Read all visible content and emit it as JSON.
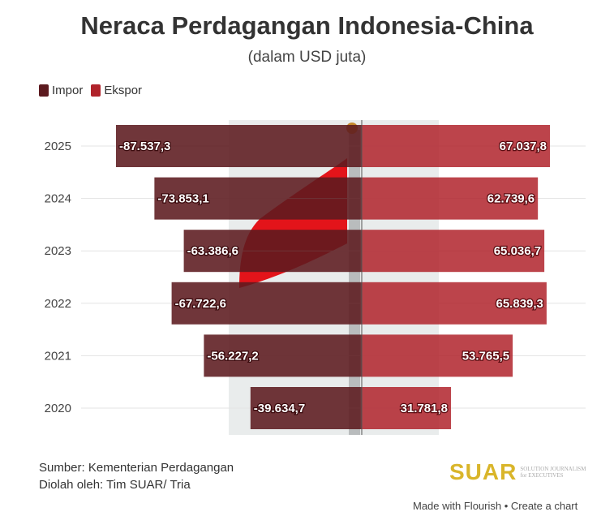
{
  "title": "Neraca Perdagangan Indonesia-China",
  "subtitle": "(dalam USD juta)",
  "legend": [
    {
      "label": "Impor",
      "color": "#5c1a1f"
    },
    {
      "label": "Ekspor",
      "color": "#b0232b"
    }
  ],
  "chart_data": {
    "type": "bar",
    "orientation": "horizontal-diverging",
    "categories": [
      "2025",
      "2024",
      "2023",
      "2022",
      "2021",
      "2020"
    ],
    "series": [
      {
        "name": "Impor",
        "values": [
          -87537.3,
          -73853.1,
          -63386.6,
          -67722.6,
          -56227.2,
          -39634.7
        ],
        "labels": [
          "-87.537,3",
          "-73.853,1",
          "-63.386,6",
          "-67.722,6",
          "-56.227,2",
          "-39.634,7"
        ]
      },
      {
        "name": "Ekspor",
        "values": [
          67037.8,
          62739.6,
          65036.7,
          65839.3,
          53765.5,
          31781.8
        ],
        "labels": [
          "67.037,8",
          "62.739,6",
          "65.036,7",
          "65.839,3",
          "53.765,5",
          "31.781,8"
        ]
      }
    ],
    "xlim": [
      -87537.3,
      79000
    ]
  },
  "source": "Sumber: Kementerian Perdagangan",
  "processed": "Diolah oleh: Tim SUAR/ Tria",
  "logo": {
    "name": "SUAR",
    "tag1": "SOLUTION JOURNALISM",
    "tag2": "for EXECUTIVES"
  },
  "footer": "Made with Flourish • Create a chart"
}
